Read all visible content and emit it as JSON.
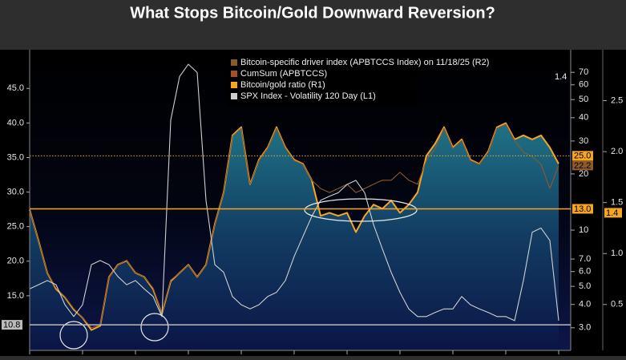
{
  "chart_data": {
    "type": "line",
    "title": "What Stops Bitcoin/Gold Downward Reversion?",
    "categories": [
      null,
      null,
      null,
      null,
      null,
      null,
      null,
      null,
      null,
      null,
      null,
      null,
      null,
      null,
      null,
      null,
      null,
      null,
      null,
      null,
      null,
      null,
      null,
      null,
      null,
      null,
      null,
      null,
      null,
      null,
      null,
      null,
      null,
      null,
      null,
      null,
      null,
      null,
      null,
      null,
      null,
      null,
      null,
      null,
      null,
      null,
      null,
      null,
      null,
      null,
      null,
      null,
      null,
      null,
      null,
      null,
      null,
      null,
      null,
      null,
      null
    ],
    "ylim": [
      7.1,
      50.6
    ],
    "yticks": [
      {
        "value": 15,
        "label": "15.0"
      },
      {
        "value": 20,
        "label": "20.0"
      },
      {
        "value": 25,
        "label": "25.0"
      },
      {
        "value": 30,
        "label": "30.0"
      },
      {
        "value": 35,
        "label": "35.0"
      },
      {
        "value": 40,
        "label": "40.0"
      },
      {
        "value": 45,
        "label": "45.0"
      }
    ],
    "y2lim": [
      0.05,
      3.0
    ],
    "y2ticks": [
      0.5,
      {
        "value": 1,
        "label": "1.0"
      },
      1.5,
      {
        "value": 2,
        "label": "2.0"
      },
      2.5
    ],
    "y3lim": [
      2.27,
      92.5
    ],
    "y3_log": true,
    "y3ticks": [
      {
        "value": 3,
        "label": "3.0"
      },
      {
        "value": 4,
        "label": "4.0"
      },
      {
        "value": 5,
        "label": "5.0"
      },
      {
        "value": 6,
        "label": "6.0"
      },
      {
        "value": 7,
        "label": "7.0"
      },
      10,
      20,
      30,
      40,
      50,
      60,
      70
    ],
    "series": [
      {
        "name": "Bitcoin-specific driver index (APBTCCS Index) on 11/18/25 (R2)",
        "color": "#8b5a2b",
        "axis": "y3",
        "values": [
          12.8,
          8.8,
          5.9,
          4.9,
          4.4,
          3.8,
          3.4,
          3.0,
          3.1,
          5.6,
          6.5,
          6.9,
          5.9,
          5.6,
          4.9,
          3.6,
          5.4,
          5.9,
          6.5,
          5.6,
          6.5,
          10.7,
          15.9,
          31.8,
          35.1,
          17.6,
          23.6,
          27.4,
          35.1,
          27.4,
          23.6,
          22.5,
          18.5,
          16.7,
          15.9,
          16.7,
          17.6,
          15.9,
          16.7,
          17.6,
          18.5,
          18.5,
          20.4,
          18.5,
          17.6,
          23.6,
          27.4,
          35.1,
          27.4,
          30.2,
          23.6,
          22.5,
          26.1,
          35.1,
          36.9,
          30.2,
          26.1,
          24.8,
          22.5,
          16.7,
          22.2
        ]
      },
      {
        "name": "Bitcoin/gold ratio (R1)",
        "color": "#f5a623",
        "axis": "y2",
        "area": true,
        "values": [
          1.43,
          1.13,
          0.81,
          0.65,
          0.57,
          0.45,
          0.37,
          0.25,
          0.29,
          0.77,
          0.89,
          0.93,
          0.81,
          0.77,
          0.65,
          0.41,
          0.73,
          0.81,
          0.89,
          0.77,
          0.89,
          1.29,
          1.6,
          2.16,
          2.24,
          1.68,
          1.92,
          2.04,
          2.24,
          2.04,
          1.92,
          1.88,
          1.72,
          1.37,
          1.4,
          1.37,
          1.4,
          1.21,
          1.37,
          1.48,
          1.44,
          1.52,
          1.4,
          1.48,
          1.6,
          1.96,
          2.08,
          2.24,
          2.04,
          2.12,
          1.92,
          1.88,
          2.0,
          2.24,
          2.28,
          2.12,
          2.16,
          2.12,
          2.16,
          2.04,
          1.88
        ]
      },
      {
        "name": "SPX Index - Volatility 120 Day (L1)",
        "color": "#cfcfcf",
        "axis": "y",
        "values": [
          16.0,
          16.6,
          17.2,
          16.6,
          13.7,
          12.0,
          13.7,
          19.5,
          20.1,
          19.5,
          17.8,
          16.6,
          17.2,
          16.0,
          14.9,
          12.0,
          40.4,
          46.7,
          48.5,
          47.3,
          28.8,
          19.5,
          18.4,
          14.9,
          13.7,
          13.1,
          13.7,
          14.9,
          15.5,
          17.2,
          20.7,
          23.6,
          26.5,
          28.8,
          29.4,
          29.9,
          31.1,
          31.7,
          29.9,
          25.3,
          21.8,
          18.4,
          15.5,
          13.1,
          12.0,
          12.0,
          12.6,
          13.1,
          13.1,
          14.9,
          13.7,
          13.1,
          12.6,
          12.0,
          12.0,
          11.4,
          17.2,
          24.2,
          24.8,
          23.0,
          11.4
        ]
      }
    ],
    "legend_extra": {
      "name": "CumSum (APBTCCS)",
      "value": 1.4
    },
    "reference_lines": [
      {
        "axis": "y3",
        "value": 25,
        "label": "25.0",
        "style": "dotted",
        "color": "#f5a623"
      },
      {
        "axis": "y3",
        "value": 22.2,
        "label": "22.2",
        "style": "none",
        "color": "#8b5a2b"
      },
      {
        "axis": "y3",
        "value": 13,
        "label": "13.0",
        "style": "solid",
        "color": "#f5a623"
      },
      {
        "axis": "y2",
        "value": 1.4,
        "style": "none",
        "color": "#f5a623"
      },
      {
        "axis": "y",
        "value": 10.8,
        "label": "10.8",
        "style": "solid",
        "color": "#bbbbbb"
      }
    ]
  }
}
